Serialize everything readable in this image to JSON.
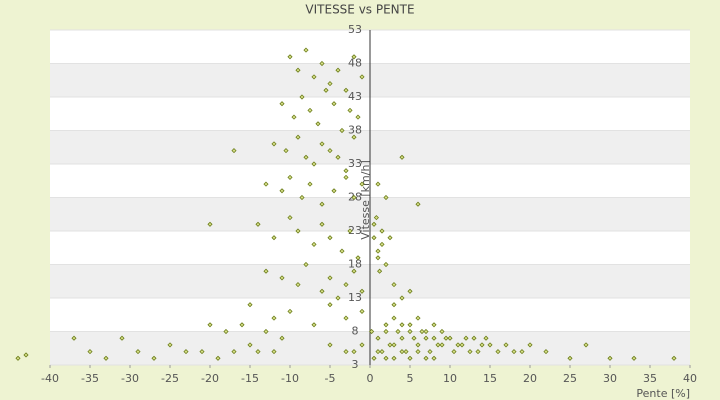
{
  "chart_data": {
    "type": "scatter",
    "title": "VITESSE vs PENTE",
    "x_label": "Pente [%]",
    "y_label": "Vitesse [km/h]",
    "xlim": [
      -40,
      40
    ],
    "xticks": [
      -40,
      -35,
      -30,
      -25,
      -20,
      -15,
      -10,
      -5,
      0,
      5,
      10,
      15,
      20,
      25,
      30,
      35,
      40
    ],
    "ylim": [
      3,
      53
    ],
    "yticks": [
      3,
      8,
      13,
      18,
      23,
      28,
      33,
      38,
      43,
      48,
      53
    ],
    "grid": true,
    "series": [
      {
        "name": "Vitesse",
        "color": "#6b7d1a",
        "x": [
          -10,
          -9,
          -8,
          -7,
          -6,
          -5,
          -4,
          -3,
          -2,
          -1,
          -11,
          -9.5,
          -8.5,
          -7.5,
          -6.5,
          -5.5,
          -4.5,
          -3.5,
          -2.5,
          -1.5,
          -12,
          -10.5,
          -9,
          -8,
          -7,
          -6,
          -5,
          -4,
          -3,
          -2,
          -13,
          -11,
          -10,
          -8.5,
          -7.5,
          -6,
          -4.5,
          -3,
          -2,
          -1,
          -14,
          -12,
          -10,
          -9,
          -7,
          -6,
          -5,
          -3.5,
          -2.5,
          -1.5,
          -13,
          -11,
          -9,
          -8,
          -6,
          -5,
          -4,
          -3,
          -2,
          -1,
          -15,
          -12,
          -10,
          -7,
          -5,
          -3,
          -1,
          0.5,
          1,
          1.5,
          0.5,
          1,
          1.5,
          2,
          2.5,
          0.8,
          1.2,
          3,
          4,
          5,
          1,
          2,
          3,
          4,
          5,
          6,
          7,
          8,
          9,
          10,
          1.5,
          2.5,
          3.5,
          4.5,
          5.5,
          6.5,
          7.5,
          8.5,
          9.5,
          10.5,
          2,
          3,
          4,
          5,
          6,
          7,
          8,
          9,
          11,
          12,
          11.5,
          12.5,
          13,
          14,
          15,
          16,
          17,
          18,
          13.5,
          14.5,
          0.5,
          1,
          2,
          3,
          4,
          5,
          6,
          7,
          8,
          3,
          -44,
          -43,
          -37,
          -35,
          -33,
          -31,
          -29,
          -27,
          -25,
          -23,
          -21,
          -20,
          -19,
          -18,
          -17,
          -16,
          -15,
          -14,
          -13,
          -12,
          19,
          20,
          22,
          25,
          27,
          30,
          33,
          38,
          -20,
          -17,
          -11,
          -5,
          -2,
          -1,
          0.2,
          1,
          2,
          4,
          6,
          -3
        ],
        "values": [
          49,
          47,
          50,
          46,
          48,
          45,
          47,
          44,
          49,
          46,
          42,
          40,
          43,
          41,
          39,
          44,
          42,
          38,
          41,
          40,
          36,
          35,
          37,
          34,
          33,
          36,
          35,
          34,
          32,
          37,
          30,
          29,
          31,
          28,
          30,
          27,
          29,
          31,
          28,
          30,
          24,
          22,
          25,
          23,
          21,
          24,
          22,
          20,
          23,
          19,
          17,
          16,
          15,
          18,
          14,
          16,
          13,
          15,
          17,
          14,
          12,
          10,
          11,
          9,
          12,
          10,
          11,
          22,
          20,
          21,
          24,
          19,
          23,
          18,
          22,
          25,
          17,
          15,
          13,
          14,
          7,
          8,
          6,
          7,
          9,
          6,
          8,
          7,
          6,
          7,
          5,
          6,
          8,
          5,
          7,
          8,
          5,
          6,
          7,
          5,
          9,
          10,
          9,
          8,
          10,
          7,
          9,
          8,
          6,
          7,
          6,
          5,
          7,
          6,
          6,
          5,
          6,
          5,
          5,
          7,
          4,
          5,
          4,
          4,
          5,
          4,
          5,
          4,
          4,
          12,
          4,
          4.5,
          7,
          5,
          4,
          7,
          5,
          4,
          6,
          5,
          5,
          9,
          4,
          8,
          5,
          9,
          6,
          5,
          8,
          5,
          5,
          6,
          5,
          4,
          6,
          4,
          4,
          4,
          24,
          35,
          7,
          6,
          5,
          6,
          8,
          30,
          28,
          34,
          27,
          5
        ]
      }
    ]
  }
}
